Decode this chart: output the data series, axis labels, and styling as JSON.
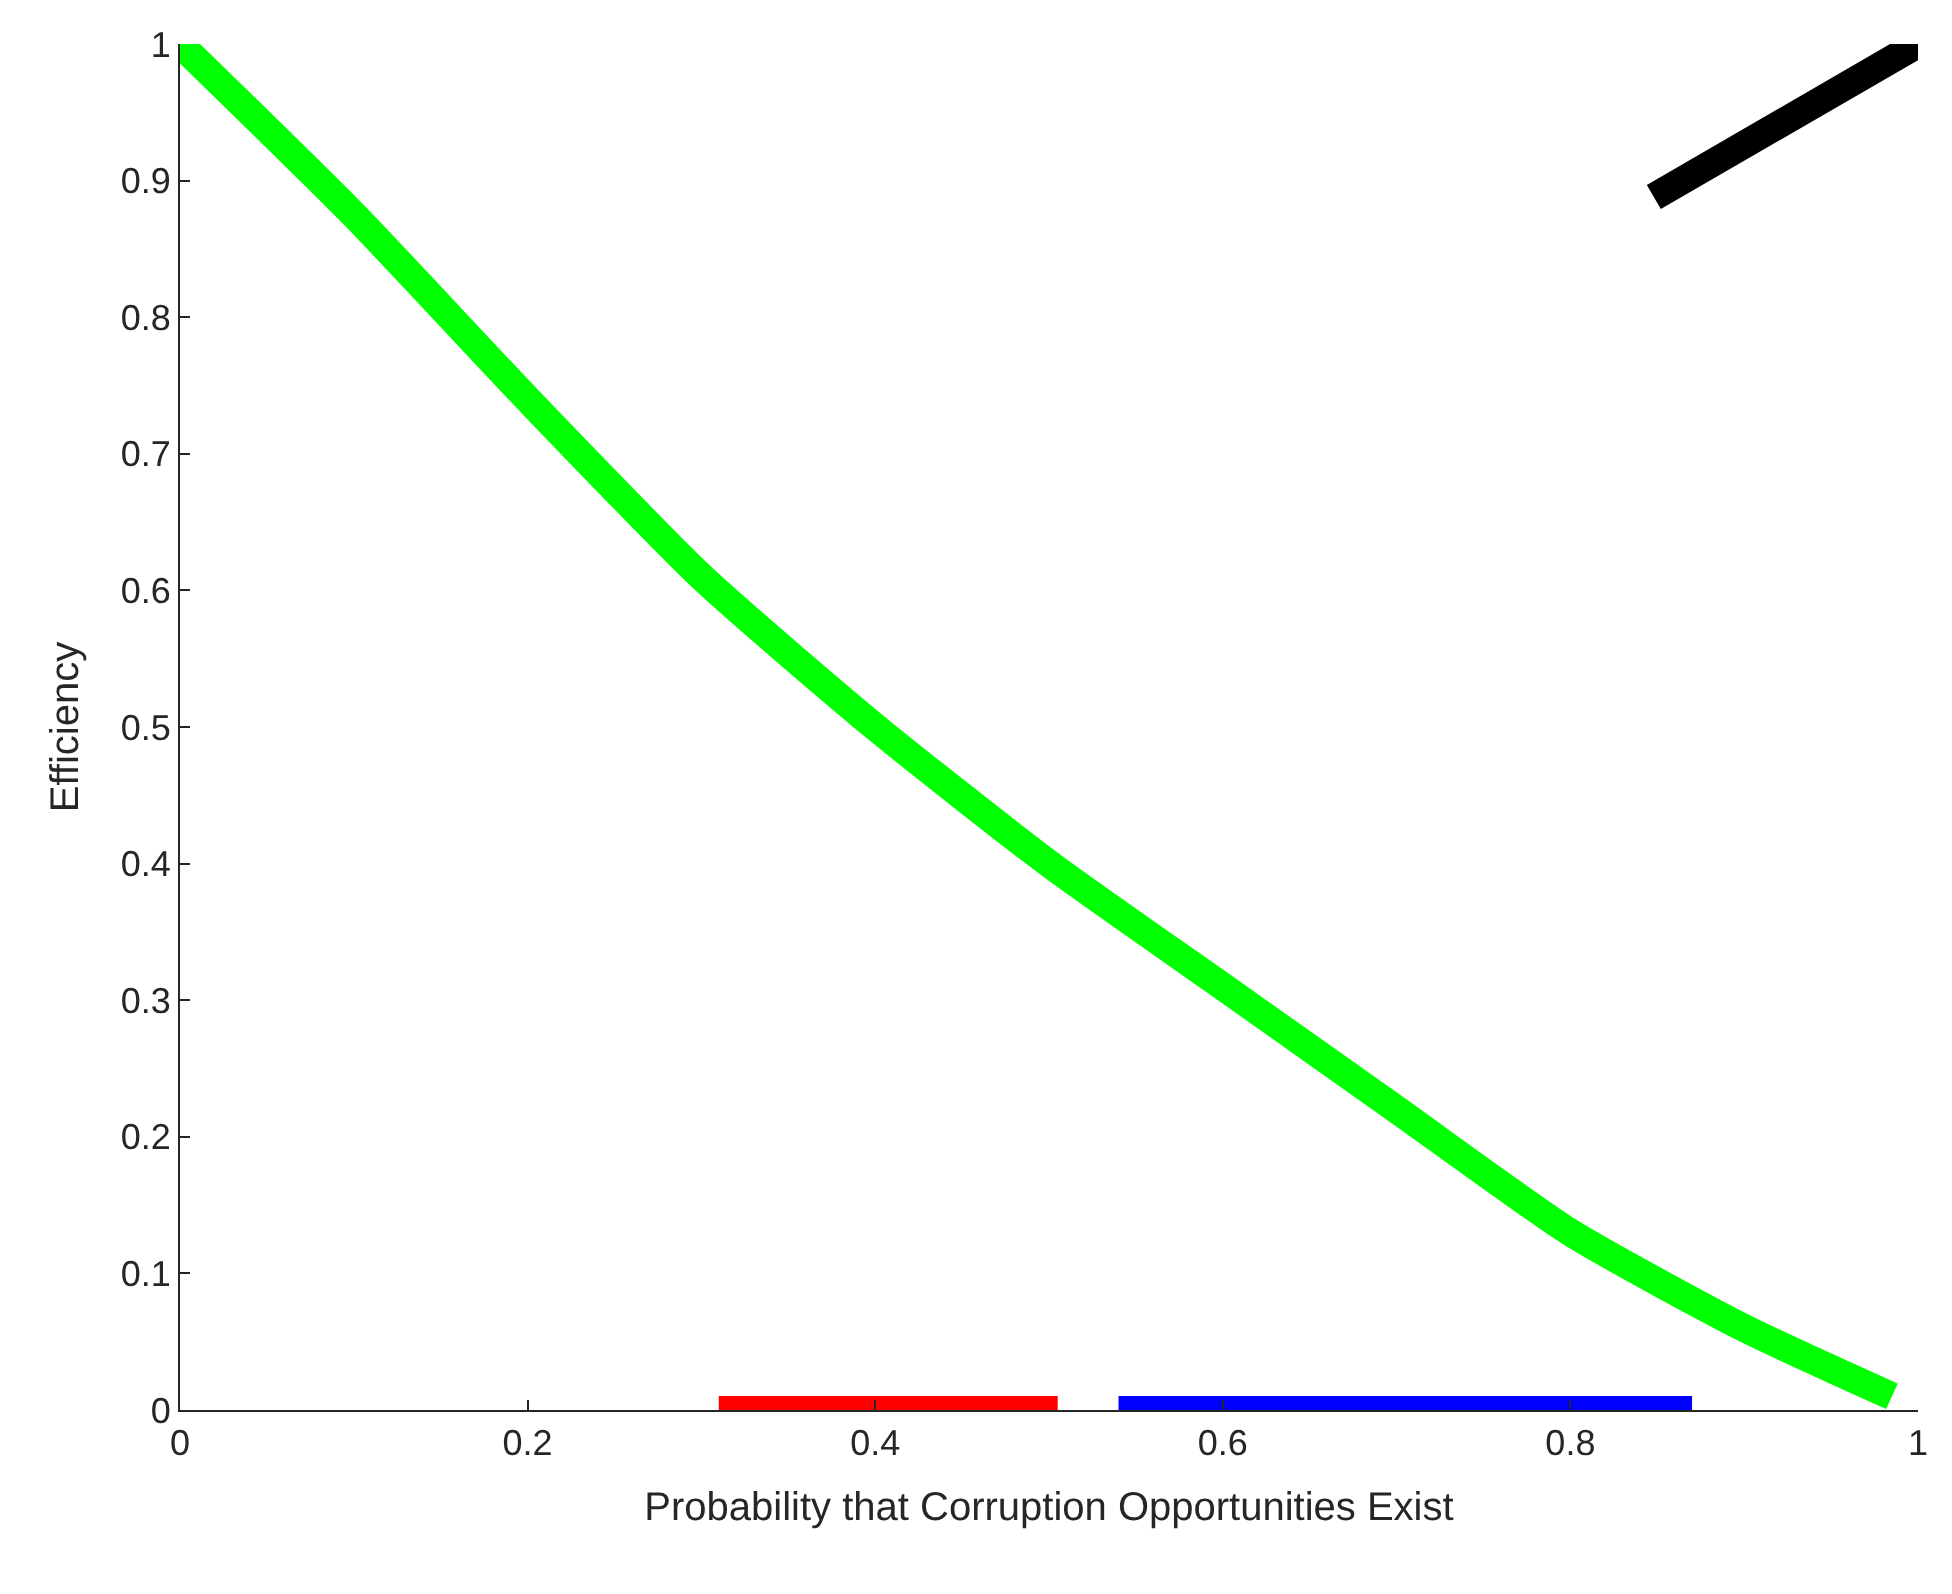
{
  "chart_data": {
    "type": "line",
    "xlabel": "Probability that Corruption Opportunities Exist",
    "ylabel": "Efficiency",
    "xlim": [
      0,
      1
    ],
    "ylim": [
      0,
      1
    ],
    "xticks": [
      0,
      0.2,
      0.4,
      0.6,
      0.8,
      1
    ],
    "yticks": [
      0,
      0.1,
      0.2,
      0.3,
      0.4,
      0.5,
      0.6,
      0.7,
      0.8,
      0.9,
      1
    ],
    "grid": false,
    "marker": "none",
    "line_style": "solid",
    "series": [
      {
        "color": "#00ff00",
        "x": [
          0,
          0.1,
          0.2,
          0.3,
          0.4,
          0.5,
          0.6,
          0.7,
          0.8,
          0.9,
          0.985
        ],
        "values": [
          1,
          0.875,
          0.74,
          0.61,
          0.5,
          0.4,
          0.31,
          0.22,
          0.13,
          0.06,
          0.01
        ]
      },
      {
        "color": "#ff0000",
        "x": [
          0.31,
          0.505
        ],
        "values": [
          0,
          0
        ]
      },
      {
        "color": "#0000ff",
        "x": [
          0.54,
          0.87
        ],
        "values": [
          0,
          0
        ]
      },
      {
        "color": "#000000",
        "x": [
          0.848,
          1
        ],
        "values": [
          0.888,
          1
        ]
      }
    ]
  }
}
